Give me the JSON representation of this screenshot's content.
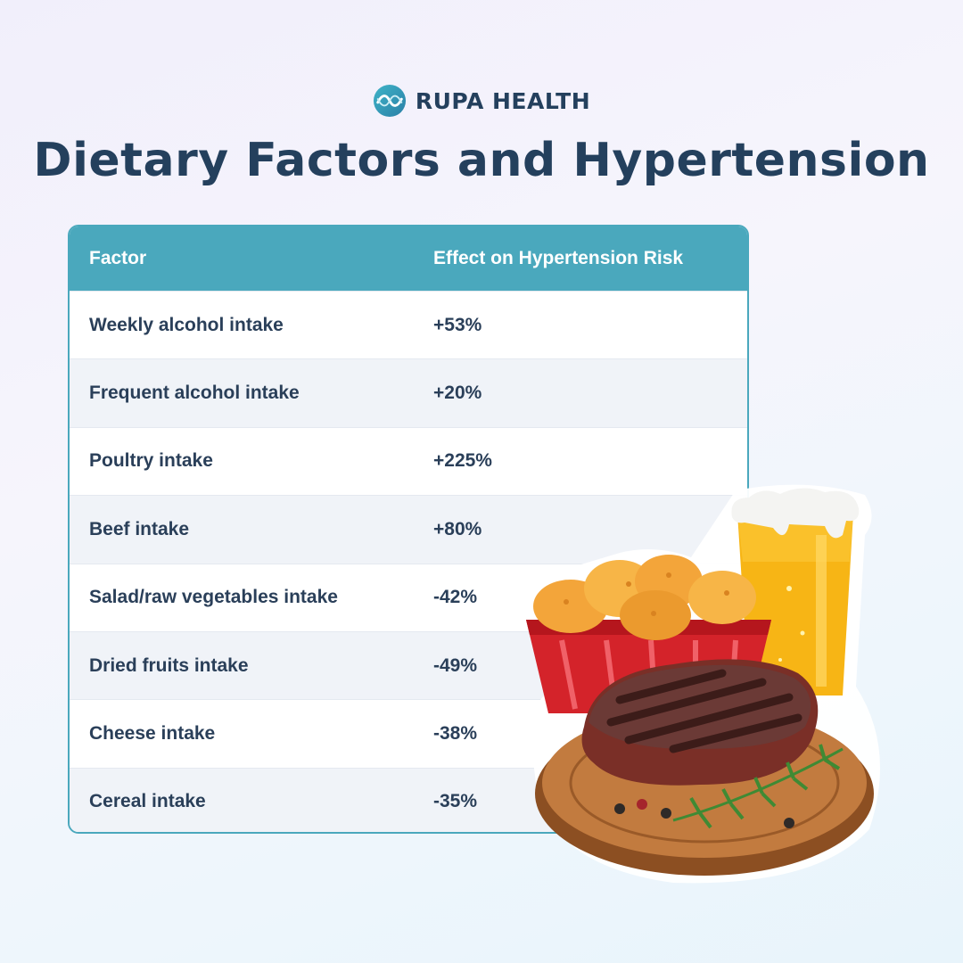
{
  "brand": {
    "name": "RUPA HEALTH",
    "logo_icon": "infinity-wave-logo-icon"
  },
  "title": "Dietary Factors and Hypertension",
  "table": {
    "headers": {
      "factor": "Factor",
      "effect": "Effect on Hypertension Risk"
    },
    "rows": [
      {
        "factor": "Weekly alcohol intake",
        "effect": "+53%"
      },
      {
        "factor": "Frequent alcohol intake",
        "effect": "+20%"
      },
      {
        "factor": "Poultry intake",
        "effect": "+225%"
      },
      {
        "factor": "Beef intake",
        "effect": "+80%"
      },
      {
        "factor": "Salad/raw vegetables intake",
        "effect": "-42%"
      },
      {
        "factor": "Dried fruits intake",
        "effect": "-49%"
      },
      {
        "factor": "Cheese intake",
        "effect": "-38%"
      },
      {
        "factor": "Cereal intake",
        "effect": "-35%"
      }
    ]
  },
  "colors": {
    "header_bg": "#4aa8bd",
    "text": "#24405d",
    "row_alt": "#f0f3f8"
  },
  "illustration": "steak-nuggets-beer-illustration"
}
